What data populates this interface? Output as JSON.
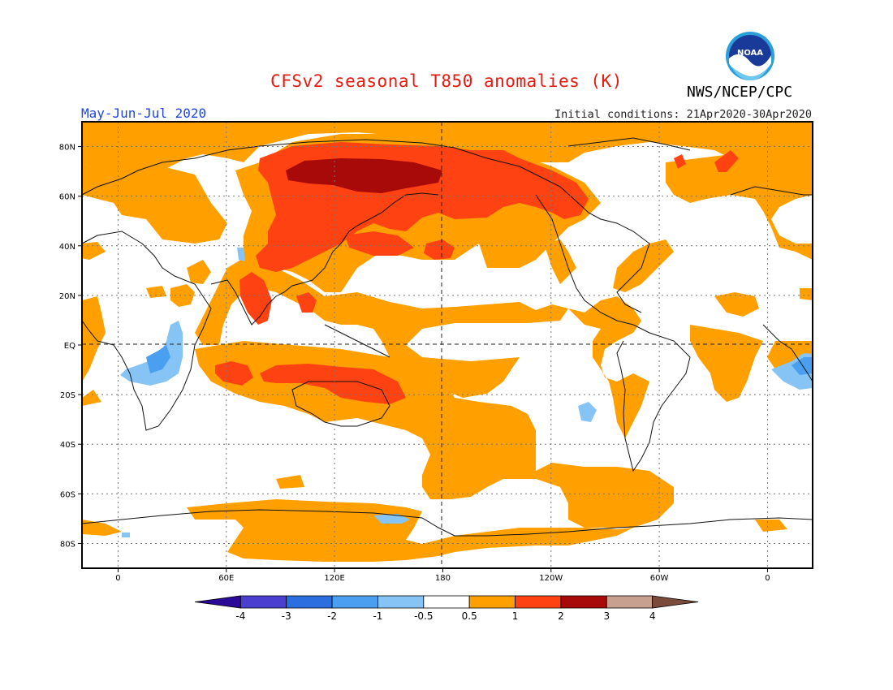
{
  "header": {
    "title": "CFSv2 seasonal T850 anomalies (K)",
    "agency": "NWS/NCEP/CPC",
    "period": "May-Jun-Jul 2020",
    "initial_conditions": "Initial conditions: 21Apr2020-30Apr2020",
    "logo_text": "NOAA"
  },
  "axes": {
    "lat_labels": [
      "80N",
      "60N",
      "40N",
      "20N",
      "EQ",
      "20S",
      "40S",
      "60S",
      "80S"
    ],
    "lat_values": [
      80,
      60,
      40,
      20,
      0,
      -20,
      -40,
      -60,
      -80
    ],
    "lon_labels": [
      "0",
      "60E",
      "120E",
      "180",
      "120W",
      "60W",
      "0"
    ],
    "lon_values": [
      0,
      60,
      120,
      180,
      240,
      300,
      360
    ],
    "lon_range": [
      -20,
      385
    ],
    "lat_range": [
      -90,
      90
    ],
    "grid": "dotted"
  },
  "colorbar": {
    "labels": [
      "-4",
      "-3",
      "-2",
      "-1",
      "-0.5",
      "0.5",
      "1",
      "2",
      "3",
      "4"
    ],
    "colors": [
      "#2a0a96",
      "#4a3fcf",
      "#2a6ee0",
      "#4a9ff0",
      "#86c4f5",
      "#ffffff",
      "#ffa000",
      "#ff4212",
      "#a80a0a",
      "#c8a090",
      "#7a4a3a"
    ]
  },
  "chart_data": {
    "type": "heatmap",
    "title": "CFSv2 seasonal T850 anomalies (K)",
    "variable": "T850 anomaly",
    "units": "K",
    "period": "May-Jun-Jul 2020",
    "contour_levels": [
      -4,
      -3,
      -2,
      -1,
      -0.5,
      0.5,
      1,
      2,
      3,
      4
    ],
    "colors": {
      "0.5-1": "#ffa000",
      "1-2": "#ff4212",
      "2-3": "#a80a0a",
      "-1--0.5": "#86c4f5",
      "-2--1": "#4a9ff0"
    }
  }
}
